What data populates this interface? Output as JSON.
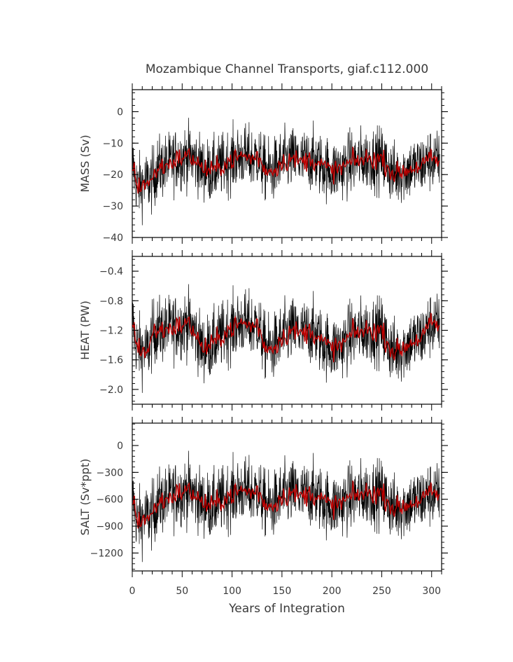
{
  "title": "Mozambique Channel Transports, giaf.c112.000",
  "colors": {
    "raw": "#000000",
    "smooth": "#c00000"
  },
  "chart_data": [
    {
      "type": "line",
      "ylabel": "MASS (Sv)",
      "xlim": [
        0,
        310
      ],
      "ylim": [
        -40,
        7
      ],
      "yticks": [
        0,
        -10,
        -20,
        -30,
        -40
      ],
      "yticklabels": [
        "0",
        "−10",
        "−20",
        "−30",
        "−40"
      ],
      "noise_amplitude": 9,
      "smoothed": {
        "x": [
          0,
          5,
          10,
          20,
          25,
          35,
          45,
          55,
          62,
          70,
          80,
          95,
          110,
          120,
          125,
          132,
          140,
          150,
          160,
          170,
          180,
          190,
          200,
          210,
          220,
          235,
          250,
          255,
          262,
          270,
          280,
          290,
          300,
          308
        ],
        "y": [
          -16,
          -24,
          -23,
          -22,
          -18,
          -17,
          -15,
          -14,
          -15,
          -18,
          -19,
          -16,
          -14,
          -15,
          -14,
          -18,
          -19,
          -16,
          -15,
          -16,
          -15,
          -17,
          -19,
          -18,
          -16,
          -15,
          -15,
          -17,
          -20,
          -19,
          -18,
          -17,
          -15,
          -16
        ]
      }
    },
    {
      "type": "line",
      "ylabel": "HEAT (PW)",
      "xlim": [
        0,
        310
      ],
      "ylim": [
        -2.2,
        -0.2
      ],
      "yticks": [
        -0.4,
        -0.8,
        -1.2,
        -1.6,
        -2.0
      ],
      "yticklabels": [
        "−0.4",
        "−0.8",
        "−1.2",
        "−1.6",
        "−2.0"
      ],
      "noise_amplitude": 0.4,
      "smoothed": {
        "x": [
          0,
          3,
          8,
          15,
          22,
          30,
          45,
          55,
          62,
          70,
          80,
          95,
          110,
          120,
          125,
          132,
          140,
          150,
          160,
          170,
          180,
          190,
          200,
          210,
          220,
          235,
          250,
          255,
          262,
          270,
          280,
          290,
          300,
          308
        ],
        "y": [
          -1.0,
          -1.35,
          -1.45,
          -1.5,
          -1.2,
          -1.2,
          -1.15,
          -1.1,
          -1.2,
          -1.45,
          -1.4,
          -1.2,
          -1.1,
          -1.15,
          -1.1,
          -1.4,
          -1.45,
          -1.3,
          -1.2,
          -1.25,
          -1.2,
          -1.35,
          -1.45,
          -1.4,
          -1.25,
          -1.2,
          -1.2,
          -1.35,
          -1.5,
          -1.45,
          -1.35,
          -1.3,
          -1.1,
          -1.15
        ]
      }
    },
    {
      "type": "line",
      "ylabel": "SALT (Sv*ppt)",
      "xlim": [
        0,
        310
      ],
      "ylim": [
        -1400,
        250
      ],
      "yticks": [
        0,
        -300,
        -600,
        -900,
        -1200
      ],
      "yticklabels": [
        "0",
        "−300",
        "−600",
        "−900",
        "−1200"
      ],
      "noise_amplitude": 330,
      "smoothed": {
        "x": [
          0,
          5,
          10,
          20,
          25,
          35,
          45,
          55,
          62,
          70,
          80,
          95,
          110,
          120,
          125,
          132,
          140,
          150,
          160,
          170,
          180,
          190,
          200,
          210,
          220,
          235,
          250,
          255,
          262,
          270,
          280,
          290,
          300,
          308
        ],
        "y": [
          -560,
          -850,
          -820,
          -780,
          -640,
          -600,
          -530,
          -500,
          -540,
          -640,
          -680,
          -570,
          -500,
          -530,
          -500,
          -640,
          -680,
          -570,
          -530,
          -570,
          -530,
          -600,
          -680,
          -640,
          -570,
          -530,
          -530,
          -600,
          -710,
          -680,
          -640,
          -600,
          -530,
          -560
        ]
      }
    }
  ],
  "xaxis": {
    "label": "Years of Integration",
    "ticks": [
      0,
      50,
      100,
      150,
      200,
      250,
      300
    ],
    "ticklabels": [
      "0",
      "50",
      "100",
      "150",
      "200",
      "250",
      "300"
    ]
  }
}
